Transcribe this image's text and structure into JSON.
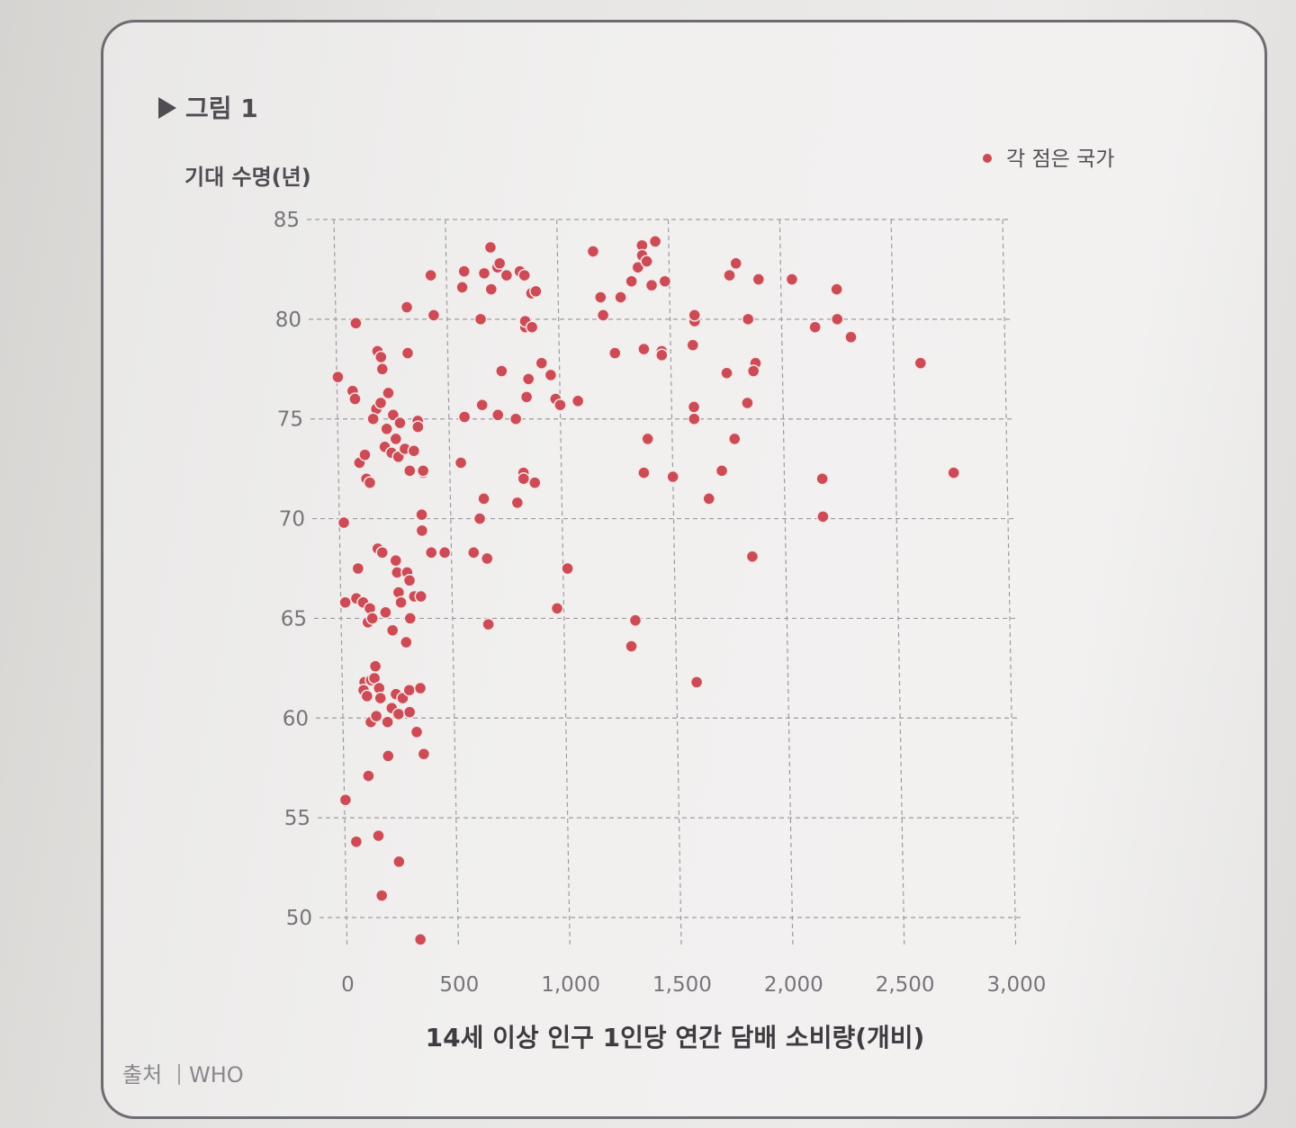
{
  "figure": {
    "title": "그림 1",
    "source_label": "출처",
    "source_value": "WHO"
  },
  "colors": {
    "marker": "#cc4b55",
    "text": "#4f4d52",
    "grid": "#9d9ba0",
    "frame": "#6e6c70"
  },
  "chart_data": {
    "type": "scatter",
    "title": "그림 1",
    "xlabel": "14세 이상 인구 1인당 연간 담배 소비량(개비)",
    "ylabel": "기대 수명(년)",
    "xlim": [
      0,
      3000
    ],
    "ylim": [
      50,
      85
    ],
    "xticks": [
      0,
      500,
      1000,
      1500,
      2000,
      2500,
      3000
    ],
    "xtick_labels": [
      "0",
      "500",
      "1,000",
      "1,500",
      "2,000",
      "2,500",
      "3,000"
    ],
    "yticks": [
      50,
      55,
      60,
      65,
      70,
      75,
      80,
      85
    ],
    "ytick_labels": [
      "50",
      "55",
      "60",
      "65",
      "70",
      "75",
      "80",
      "85"
    ],
    "grid": true,
    "legend": {
      "label": "각 점은 국가",
      "placement": "top-right"
    },
    "points": [
      [
        5,
        77.1
      ],
      [
        20,
        69.8
      ],
      [
        20,
        65.8
      ],
      [
        5,
        55.9
      ],
      [
        50,
        53.8
      ],
      [
        90,
        79.8
      ],
      [
        70,
        76.4
      ],
      [
        80,
        76.0
      ],
      [
        95,
        72.8
      ],
      [
        120,
        73.2
      ],
      [
        125,
        72.0
      ],
      [
        140,
        71.8
      ],
      [
        80,
        67.5
      ],
      [
        70,
        66.0
      ],
      [
        100,
        65.8
      ],
      [
        130,
        65.5
      ],
      [
        120,
        64.8
      ],
      [
        140,
        65.0
      ],
      [
        100,
        61.8
      ],
      [
        95,
        61.4
      ],
      [
        110,
        61.1
      ],
      [
        130,
        61.9
      ],
      [
        150,
        62.6
      ],
      [
        145,
        62.0
      ],
      [
        165,
        61.5
      ],
      [
        170,
        61.0
      ],
      [
        125,
        59.8
      ],
      [
        150,
        60.1
      ],
      [
        110,
        57.1
      ],
      [
        150,
        54.1
      ],
      [
        160,
        51.1
      ],
      [
        185,
        78.4
      ],
      [
        200,
        78.1
      ],
      [
        205,
        77.5
      ],
      [
        175,
        75.5
      ],
      [
        195,
        75.8
      ],
      [
        160,
        75.0
      ],
      [
        230,
        76.3
      ],
      [
        250,
        75.2
      ],
      [
        220,
        74.5
      ],
      [
        280,
        74.8
      ],
      [
        260,
        74.0
      ],
      [
        210,
        73.6
      ],
      [
        240,
        73.3
      ],
      [
        270,
        73.1
      ],
      [
        300,
        73.5
      ],
      [
        320,
        72.4
      ],
      [
        170,
        68.5
      ],
      [
        190,
        68.3
      ],
      [
        250,
        67.9
      ],
      [
        255,
        67.3
      ],
      [
        260,
        66.3
      ],
      [
        300,
        67.3
      ],
      [
        270,
        65.8
      ],
      [
        310,
        66.9
      ],
      [
        330,
        66.1
      ],
      [
        200,
        65.3
      ],
      [
        230,
        64.4
      ],
      [
        290,
        63.8
      ],
      [
        310,
        65.0
      ],
      [
        240,
        61.2
      ],
      [
        270,
        61.0
      ],
      [
        300,
        61.4
      ],
      [
        220,
        60.5
      ],
      [
        250,
        60.2
      ],
      [
        200,
        59.8
      ],
      [
        300,
        60.3
      ],
      [
        330,
        59.3
      ],
      [
        200,
        58.1
      ],
      [
        240,
        52.8
      ],
      [
        330,
        48.9
      ],
      [
        350,
        61.5
      ],
      [
        360,
        58.2
      ],
      [
        360,
        66.1
      ],
      [
        380,
        72.3
      ],
      [
        380,
        72.4
      ],
      [
        370,
        70.2
      ],
      [
        370,
        69.4
      ],
      [
        340,
        73.4
      ],
      [
        360,
        74.9
      ],
      [
        360,
        74.6
      ],
      [
        430,
        82.2
      ],
      [
        440,
        80.2
      ],
      [
        410,
        68.3
      ],
      [
        320,
        80.6
      ],
      [
        320,
        78.3
      ],
      [
        580,
        82.4
      ],
      [
        570,
        81.6
      ],
      [
        670,
        82.3
      ],
      [
        700,
        81.5
      ],
      [
        730,
        82.6
      ],
      [
        770,
        82.2
      ],
      [
        830,
        82.4
      ],
      [
        850,
        82.2
      ],
      [
        880,
        81.3
      ],
      [
        900,
        81.4
      ],
      [
        850,
        79.6
      ],
      [
        850,
        79.9
      ],
      [
        880,
        79.6
      ],
      [
        650,
        80.0
      ],
      [
        700,
        83.6
      ],
      [
        740,
        82.8
      ],
      [
        570,
        75.1
      ],
      [
        650,
        75.7
      ],
      [
        720,
        75.2
      ],
      [
        800,
        75.0
      ],
      [
        740,
        77.4
      ],
      [
        860,
        77.0
      ],
      [
        850,
        76.1
      ],
      [
        550,
        72.8
      ],
      [
        650,
        71.0
      ],
      [
        630,
        70.0
      ],
      [
        830,
        72.3
      ],
      [
        830,
        72.0
      ],
      [
        800,
        70.8
      ],
      [
        920,
        77.8
      ],
      [
        960,
        77.2
      ],
      [
        980,
        76.0
      ],
      [
        1000,
        75.7
      ],
      [
        1080,
        75.9
      ],
      [
        880,
        71.8
      ],
      [
        1160,
        83.4
      ],
      [
        1190,
        81.1
      ],
      [
        1200,
        80.2
      ],
      [
        1250,
        78.3
      ],
      [
        1280,
        81.1
      ],
      [
        1330,
        81.9
      ],
      [
        1360,
        82.6
      ],
      [
        1380,
        83.7
      ],
      [
        1380,
        83.2
      ],
      [
        1400,
        82.9
      ],
      [
        1440,
        83.9
      ],
      [
        1420,
        81.7
      ],
      [
        1480,
        81.9
      ],
      [
        1380,
        78.5
      ],
      [
        1460,
        78.4
      ],
      [
        1460,
        78.2
      ],
      [
        1390,
        74.0
      ],
      [
        1390,
        74.0
      ],
      [
        1370,
        72.3
      ],
      [
        1500,
        72.1
      ],
      [
        660,
        64.7
      ],
      [
        660,
        68.0
      ],
      [
        600,
        68.3
      ],
      [
        470,
        68.3
      ],
      [
        970,
        65.5
      ],
      [
        1020,
        67.5
      ],
      [
        1300,
        63.6
      ],
      [
        1320,
        64.9
      ],
      [
        1590,
        61.8
      ],
      [
        1610,
        79.9
      ],
      [
        1610,
        80.2
      ],
      [
        1600,
        78.7
      ],
      [
        1600,
        75.6
      ],
      [
        1600,
        75.0
      ],
      [
        1660,
        71.0
      ],
      [
        1720,
        72.4
      ],
      [
        1750,
        77.3
      ],
      [
        1770,
        82.2
      ],
      [
        1800,
        82.8
      ],
      [
        1780,
        74.0
      ],
      [
        1850,
        80.0
      ],
      [
        1840,
        75.8
      ],
      [
        1880,
        77.8
      ],
      [
        1870,
        77.4
      ],
      [
        1900,
        82.0
      ],
      [
        1850,
        68.1
      ],
      [
        2050,
        82.0
      ],
      [
        2150,
        79.6
      ],
      [
        2250,
        80.0
      ],
      [
        2250,
        81.5
      ],
      [
        2310,
        79.1
      ],
      [
        2170,
        72.0
      ],
      [
        2170,
        70.1
      ],
      [
        2620,
        77.8
      ],
      [
        2760,
        72.3
      ]
    ]
  }
}
